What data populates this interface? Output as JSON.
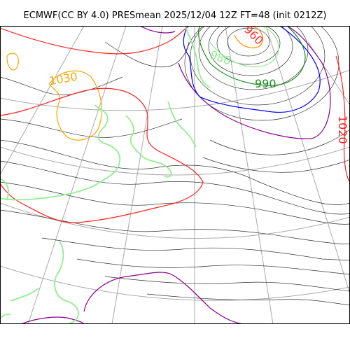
{
  "figure": {
    "title": "ECMWF(CC BY 4.0) PRESmean 2025/12/04 12Z FT=48 (init 0212Z)"
  },
  "map": {
    "contour_labels": [
      {
        "id": "label-1030",
        "text": "1030",
        "color": "#f5a700"
      },
      {
        "id": "label-980",
        "text": "980",
        "color": "#90ee90"
      },
      {
        "id": "label-990",
        "text": "990",
        "color": "#1b8a1b"
      },
      {
        "id": "label-960",
        "text": "960",
        "color": "#ff3030"
      },
      {
        "id": "label-1020",
        "text": "1020",
        "color": "#ff2020"
      }
    ],
    "colors": {
      "isobar": "#333333",
      "coastline": "#90ee90",
      "graticule": "#a9a9a9",
      "contour_1030": "#f5a700",
      "contour_1020": "#ff2020",
      "contour_1010": "#8b008b",
      "contour_1000": "#0000ff",
      "contour_990": "#1b8a1b",
      "contour_960": "#ff8c00"
    }
  }
}
